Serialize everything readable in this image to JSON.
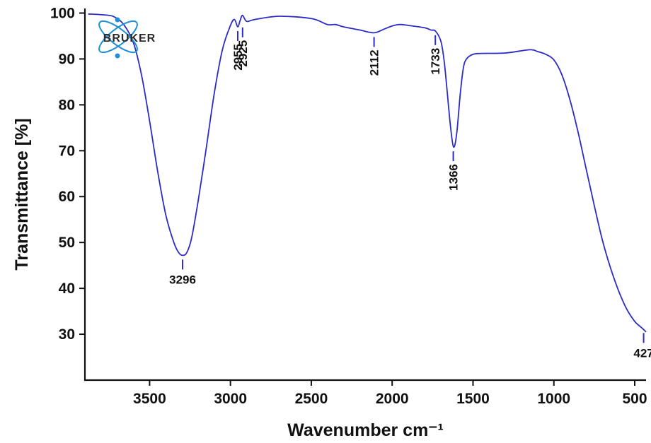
{
  "chart_data": {
    "type": "line",
    "title": "",
    "xlabel": "Wavenumber cm⁻¹",
    "ylabel": "Transmittance [%]",
    "xlim": [
      3900,
      430
    ],
    "ylim": [
      20,
      101
    ],
    "x_reversed": true,
    "grid": false,
    "line_color": "#2b2bc8",
    "xticks": [
      3500,
      3000,
      2500,
      2000,
      1500,
      1000,
      500
    ],
    "yticks": [
      30,
      40,
      50,
      60,
      70,
      80,
      90,
      100
    ],
    "series": [
      {
        "x": [
          3880,
          3780,
          3720,
          3660,
          3600,
          3550,
          3500,
          3450,
          3400,
          3350,
          3320,
          3296,
          3270,
          3240,
          3200,
          3150,
          3100,
          3050,
          3000,
          2975,
          2955,
          2940,
          2925,
          2900,
          2850,
          2700,
          2500,
          2400,
          2350,
          2300,
          2200,
          2112,
          2050,
          2000,
          1950,
          1900,
          1800,
          1760,
          1733,
          1700,
          1680,
          1660,
          1640,
          1620,
          1600,
          1580,
          1560,
          1540,
          1500,
          1450,
          1300,
          1150,
          1100,
          1050,
          1000,
          950,
          900,
          850,
          800,
          750,
          700,
          650,
          600,
          550,
          500,
          470,
          450,
          430
        ],
        "y": [
          99.8,
          99.6,
          99.2,
          97.5,
          93.5,
          86.5,
          76.5,
          65.5,
          56.0,
          50.0,
          47.8,
          47.2,
          47.8,
          51.0,
          59.0,
          70.5,
          82.5,
          92.0,
          97.3,
          98.6,
          97.0,
          98.4,
          99.5,
          98.2,
          98.6,
          99.3,
          98.8,
          97.5,
          97.5,
          97.0,
          96.3,
          95.7,
          96.5,
          97.2,
          97.5,
          97.3,
          96.8,
          96.3,
          96.1,
          94.0,
          90.0,
          83.0,
          75.5,
          70.8,
          74.0,
          82.0,
          88.0,
          90.0,
          91.0,
          91.2,
          91.3,
          92.0,
          91.6,
          91.0,
          89.8,
          86.5,
          81.0,
          74.0,
          66.0,
          58.0,
          50.5,
          44.5,
          39.5,
          35.5,
          32.8,
          31.8,
          31.2,
          30.5
        ]
      }
    ],
    "annotations": [
      {
        "label": "3296",
        "x": 3296,
        "y": 47.2,
        "position": "below"
      },
      {
        "label": "2955",
        "x": 2955,
        "y": 97.0,
        "position": "below"
      },
      {
        "label": "2925",
        "x": 2925,
        "y": 97.8,
        "position": "below"
      },
      {
        "label": "2112",
        "x": 2112,
        "y": 95.7,
        "position": "below"
      },
      {
        "label": "1733",
        "x": 1733,
        "y": 96.1,
        "position": "below"
      },
      {
        "label": "1366",
        "x": 1622,
        "y": 70.8,
        "position": "below"
      },
      {
        "label": "427",
        "x": 445,
        "y": 31.2,
        "position": "below"
      }
    ]
  },
  "logo": {
    "text": "BRUKER",
    "colors": {
      "orbit": "#1e90d8",
      "text": "#2a2a2a"
    }
  }
}
